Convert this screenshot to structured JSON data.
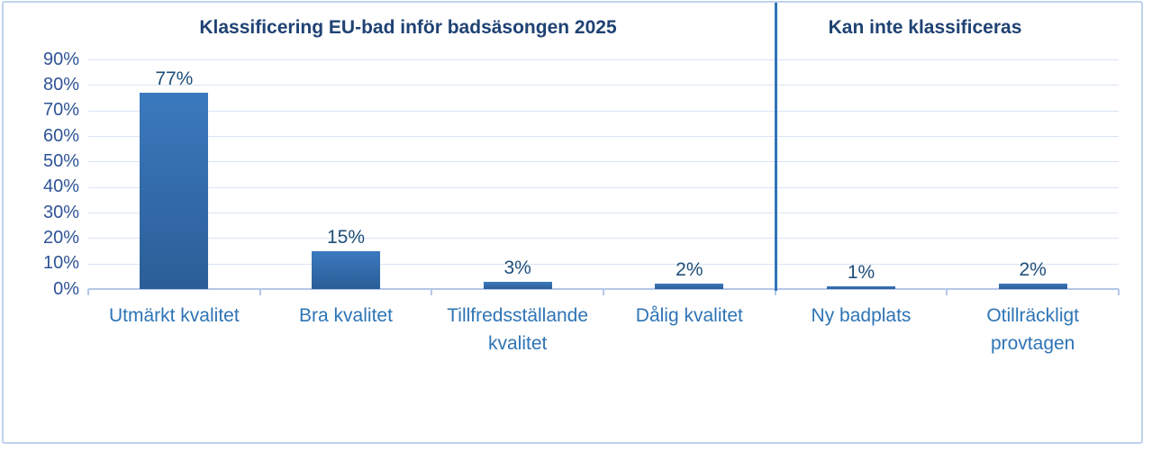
{
  "chart_data": {
    "type": "bar",
    "titles": {
      "left_section": "Klassificering EU-bad inför badsäsongen 2025",
      "right_section": "Kan inte klassificeras"
    },
    "categories": [
      "Utmärkt kvalitet",
      "Bra kvalitet",
      "Tillfredsställande kvalitet",
      "Dålig kvalitet",
      "Ny badplats",
      "Otillräckligt provtagen"
    ],
    "values": [
      77,
      15,
      3,
      2,
      1,
      2
    ],
    "value_labels": [
      "77%",
      "15%",
      "3%",
      "2%",
      "1%",
      "2%"
    ],
    "y_tick_labels": [
      "90%",
      "80%",
      "70%",
      "60%",
      "50%",
      "40%",
      "30%",
      "20%",
      "10%",
      "0%"
    ],
    "ylim": [
      0,
      90
    ],
    "grid": true,
    "legend": "none",
    "sections": {
      "left_categories": 4,
      "right_categories": 2,
      "divider_after_category": "Dålig kvalitet"
    },
    "colors": {
      "bar_top": "#3B79BE",
      "bar_bottom": "#2B5E97",
      "gridline": "#DAE5F2",
      "axis_line": "#B4C7E7",
      "divider": "#2E75B6",
      "frame_border": "#BFD3EC",
      "title_text": "#1F4273",
      "y_tick_text": "#2F5496",
      "category_text": "#2E74B5",
      "value_label_text": "#1F4E79"
    }
  }
}
